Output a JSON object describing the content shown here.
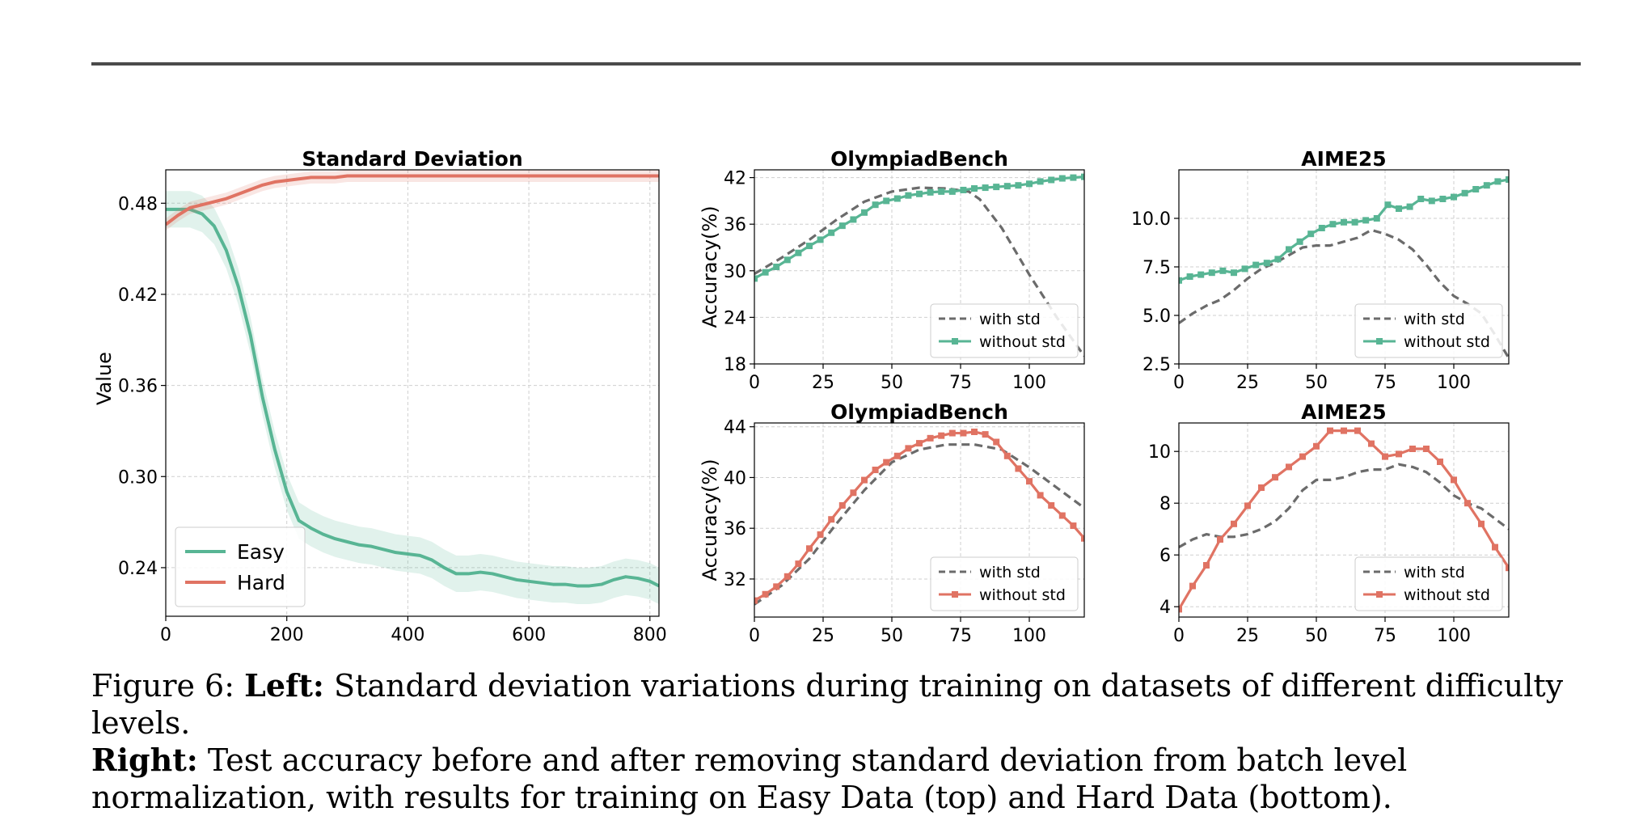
{
  "colors": {
    "easy": "#58b594",
    "hard": "#e07363",
    "std": "#6b6b6b",
    "grid": "#cfcfcf"
  },
  "caption": {
    "figure_label": "Figure 6:",
    "left_label": "Left:",
    "left_text": "Standard deviation variations during training on datasets of different difficulty levels.",
    "right_label": "Right:",
    "right_text": "Test accuracy before and after removing standard deviation from batch level normalization, with results for training on Easy Data (top) and Hard Data (bottom)."
  },
  "chart_data": [
    {
      "id": "std",
      "type": "line",
      "title": "Standard Deviation",
      "xlabel": "",
      "ylabel": "Value",
      "xlim": [
        0,
        815
      ],
      "ylim": [
        0.208,
        0.502
      ],
      "xticks": [
        0,
        200,
        400,
        600,
        800
      ],
      "yticks": [
        0.24,
        0.3,
        0.36,
        0.42,
        0.48
      ],
      "yticklabels": [
        "0.24",
        "0.30",
        "0.36",
        "0.42",
        "0.48"
      ],
      "grid": true,
      "legend": {
        "position": "bottom-left",
        "entries": [
          "Easy",
          "Hard"
        ]
      },
      "series": [
        {
          "name": "Easy",
          "style": "solid",
          "color": "easy",
          "band": 0.012,
          "x": [
            0,
            20,
            40,
            60,
            80,
            100,
            120,
            140,
            160,
            180,
            200,
            220,
            240,
            260,
            280,
            300,
            320,
            340,
            360,
            380,
            400,
            420,
            440,
            460,
            480,
            500,
            520,
            540,
            560,
            580,
            600,
            620,
            640,
            660,
            680,
            700,
            720,
            740,
            760,
            780,
            800,
            815
          ],
          "values": [
            0.476,
            0.476,
            0.476,
            0.473,
            0.465,
            0.449,
            0.425,
            0.393,
            0.352,
            0.318,
            0.29,
            0.271,
            0.266,
            0.262,
            0.259,
            0.257,
            0.255,
            0.254,
            0.252,
            0.25,
            0.249,
            0.248,
            0.245,
            0.24,
            0.236,
            0.236,
            0.237,
            0.236,
            0.234,
            0.232,
            0.231,
            0.23,
            0.229,
            0.229,
            0.228,
            0.228,
            0.229,
            0.232,
            0.234,
            0.233,
            0.231,
            0.228
          ]
        },
        {
          "name": "Hard",
          "style": "solid",
          "color": "hard",
          "band": 0.004,
          "x": [
            0,
            20,
            40,
            60,
            80,
            100,
            120,
            140,
            160,
            180,
            200,
            220,
            240,
            260,
            280,
            300,
            350,
            400,
            450,
            500,
            550,
            600,
            650,
            700,
            750,
            800,
            815
          ],
          "values": [
            0.466,
            0.472,
            0.477,
            0.479,
            0.481,
            0.483,
            0.486,
            0.489,
            0.492,
            0.494,
            0.495,
            0.496,
            0.497,
            0.497,
            0.497,
            0.498,
            0.498,
            0.498,
            0.498,
            0.498,
            0.498,
            0.498,
            0.498,
            0.498,
            0.498,
            0.498,
            0.498
          ]
        }
      ]
    },
    {
      "id": "ob_easy",
      "type": "line",
      "title": "OlympiadBench",
      "xlabel": "",
      "ylabel": "Accuracy(%)",
      "xlim": [
        0,
        120
      ],
      "ylim": [
        18,
        43
      ],
      "xticks": [
        0,
        25,
        50,
        75,
        100
      ],
      "yticks": [
        18,
        24,
        30,
        36,
        42
      ],
      "yticklabels": [
        "18",
        "24",
        "30",
        "36",
        "42"
      ],
      "grid": true,
      "legend": {
        "position": "bottom-right",
        "entries": [
          "with std",
          "without std"
        ]
      },
      "series": [
        {
          "name": "with std",
          "style": "dashed",
          "color": "std",
          "x": [
            0,
            10,
            20,
            30,
            40,
            50,
            60,
            70,
            78,
            82,
            90,
            100,
            110,
            120
          ],
          "values": [
            29.6,
            31.7,
            34.0,
            36.6,
            38.9,
            40.2,
            40.7,
            40.6,
            40.2,
            39.2,
            35.5,
            29.5,
            24.0,
            19.0
          ]
        },
        {
          "name": "without std",
          "style": "solid",
          "color": "easy",
          "markers": true,
          "x": [
            0,
            4,
            8,
            12,
            16,
            20,
            24,
            28,
            32,
            36,
            40,
            44,
            48,
            52,
            56,
            60,
            64,
            68,
            72,
            76,
            80,
            84,
            88,
            92,
            96,
            100,
            104,
            108,
            112,
            116,
            120
          ],
          "values": [
            29.0,
            29.8,
            30.5,
            31.4,
            32.3,
            33.2,
            34.0,
            34.9,
            35.8,
            36.6,
            37.5,
            38.5,
            39.0,
            39.3,
            39.7,
            39.9,
            40.1,
            40.2,
            40.2,
            40.4,
            40.6,
            40.7,
            40.8,
            40.9,
            41.0,
            41.2,
            41.5,
            41.7,
            41.9,
            42.0,
            42.1
          ]
        }
      ]
    },
    {
      "id": "aime_easy",
      "type": "line",
      "title": "AIME25",
      "xlabel": "",
      "ylabel": "",
      "xlim": [
        0,
        120
      ],
      "ylim": [
        2.5,
        12.5
      ],
      "xticks": [
        0,
        25,
        50,
        75,
        100
      ],
      "yticks": [
        2.5,
        5.0,
        7.5,
        10.0
      ],
      "yticklabels": [
        "2.5",
        "5.0",
        "7.5",
        "10.0"
      ],
      "grid": true,
      "legend": {
        "position": "bottom-right",
        "entries": [
          "with std",
          "without std"
        ]
      },
      "series": [
        {
          "name": "with std",
          "style": "dashed",
          "color": "std",
          "x": [
            0,
            5,
            10,
            15,
            20,
            25,
            30,
            35,
            40,
            45,
            50,
            55,
            60,
            65,
            70,
            75,
            80,
            85,
            90,
            95,
            100,
            105,
            110,
            115,
            120
          ],
          "values": [
            4.6,
            5.1,
            5.5,
            5.8,
            6.3,
            6.9,
            7.4,
            7.7,
            8.1,
            8.5,
            8.6,
            8.6,
            8.8,
            9.0,
            9.4,
            9.2,
            8.9,
            8.4,
            7.6,
            6.7,
            6.0,
            5.6,
            5.1,
            4.0,
            2.8
          ]
        },
        {
          "name": "without std",
          "style": "solid",
          "color": "easy",
          "markers": true,
          "x": [
            0,
            4,
            8,
            12,
            16,
            20,
            24,
            28,
            32,
            36,
            40,
            44,
            48,
            52,
            56,
            60,
            64,
            68,
            72,
            76,
            80,
            84,
            88,
            92,
            96,
            100,
            104,
            108,
            112,
            116,
            120
          ],
          "values": [
            6.8,
            7.0,
            7.1,
            7.2,
            7.3,
            7.2,
            7.4,
            7.6,
            7.7,
            7.9,
            8.4,
            8.8,
            9.2,
            9.5,
            9.7,
            9.8,
            9.8,
            9.9,
            10.0,
            10.7,
            10.5,
            10.6,
            11.0,
            10.9,
            11.0,
            11.1,
            11.3,
            11.5,
            11.7,
            11.9,
            12.0
          ]
        }
      ]
    },
    {
      "id": "ob_hard",
      "type": "line",
      "title": "OlympiadBench",
      "xlabel": "",
      "ylabel": "Accuracy(%)",
      "xlim": [
        0,
        120
      ],
      "ylim": [
        29.0,
        44.3
      ],
      "xticks": [
        0,
        25,
        50,
        75,
        100
      ],
      "yticks": [
        32,
        36,
        40,
        44
      ],
      "yticklabels": [
        "32",
        "36",
        "40",
        "44"
      ],
      "grid": true,
      "legend": {
        "position": "bottom-right",
        "entries": [
          "with std",
          "without std"
        ]
      },
      "series": [
        {
          "name": "with std",
          "style": "dashed",
          "color": "std",
          "x": [
            0,
            10,
            20,
            30,
            40,
            50,
            60,
            70,
            80,
            90,
            100,
            110,
            120
          ],
          "values": [
            30.0,
            31.5,
            33.6,
            36.4,
            39.0,
            41.2,
            42.2,
            42.6,
            42.6,
            42.2,
            40.8,
            39.2,
            37.6
          ]
        },
        {
          "name": "without std",
          "style": "solid",
          "color": "hard",
          "markers": true,
          "x": [
            0,
            4,
            8,
            12,
            16,
            20,
            24,
            28,
            32,
            36,
            40,
            44,
            48,
            52,
            56,
            60,
            64,
            68,
            72,
            76,
            80,
            84,
            88,
            92,
            96,
            100,
            104,
            108,
            112,
            116,
            120
          ],
          "values": [
            30.3,
            30.8,
            31.4,
            32.2,
            33.2,
            34.4,
            35.5,
            36.7,
            37.8,
            38.8,
            39.8,
            40.6,
            41.2,
            41.7,
            42.3,
            42.7,
            43.1,
            43.3,
            43.5,
            43.5,
            43.6,
            43.4,
            42.8,
            41.7,
            40.7,
            39.7,
            38.6,
            37.8,
            37.0,
            36.2,
            35.2
          ]
        }
      ]
    },
    {
      "id": "aime_hard",
      "type": "line",
      "title": "AIME25",
      "xlabel": "",
      "ylabel": "",
      "xlim": [
        0,
        120
      ],
      "ylim": [
        3.6,
        11.1
      ],
      "xticks": [
        0,
        25,
        50,
        75,
        100
      ],
      "yticks": [
        4,
        6,
        8,
        10
      ],
      "yticklabels": [
        "4",
        "6",
        "8",
        "10"
      ],
      "grid": true,
      "legend": {
        "position": "bottom-right",
        "entries": [
          "with std",
          "without std"
        ]
      },
      "series": [
        {
          "name": "with std",
          "style": "dashed",
          "color": "std",
          "x": [
            0,
            5,
            10,
            15,
            20,
            25,
            30,
            35,
            40,
            45,
            50,
            55,
            60,
            65,
            70,
            75,
            80,
            85,
            90,
            95,
            100,
            105,
            110,
            115,
            120
          ],
          "values": [
            6.3,
            6.6,
            6.8,
            6.7,
            6.7,
            6.8,
            7.0,
            7.3,
            7.8,
            8.5,
            8.9,
            8.9,
            9.0,
            9.2,
            9.3,
            9.3,
            9.5,
            9.4,
            9.2,
            8.8,
            8.3,
            8.0,
            7.8,
            7.4,
            7.0
          ]
        },
        {
          "name": "without std",
          "style": "solid",
          "color": "hard",
          "markers": true,
          "x": [
            0,
            5,
            10,
            15,
            20,
            25,
            30,
            35,
            40,
            45,
            50,
            55,
            60,
            65,
            70,
            75,
            80,
            85,
            90,
            95,
            100,
            105,
            110,
            115,
            120
          ],
          "values": [
            3.9,
            4.8,
            5.6,
            6.6,
            7.2,
            7.9,
            8.6,
            9.0,
            9.4,
            9.8,
            10.2,
            10.8,
            10.8,
            10.8,
            10.3,
            9.8,
            9.9,
            10.1,
            10.1,
            9.6,
            8.9,
            8.0,
            7.2,
            6.3,
            5.5
          ]
        }
      ]
    }
  ]
}
